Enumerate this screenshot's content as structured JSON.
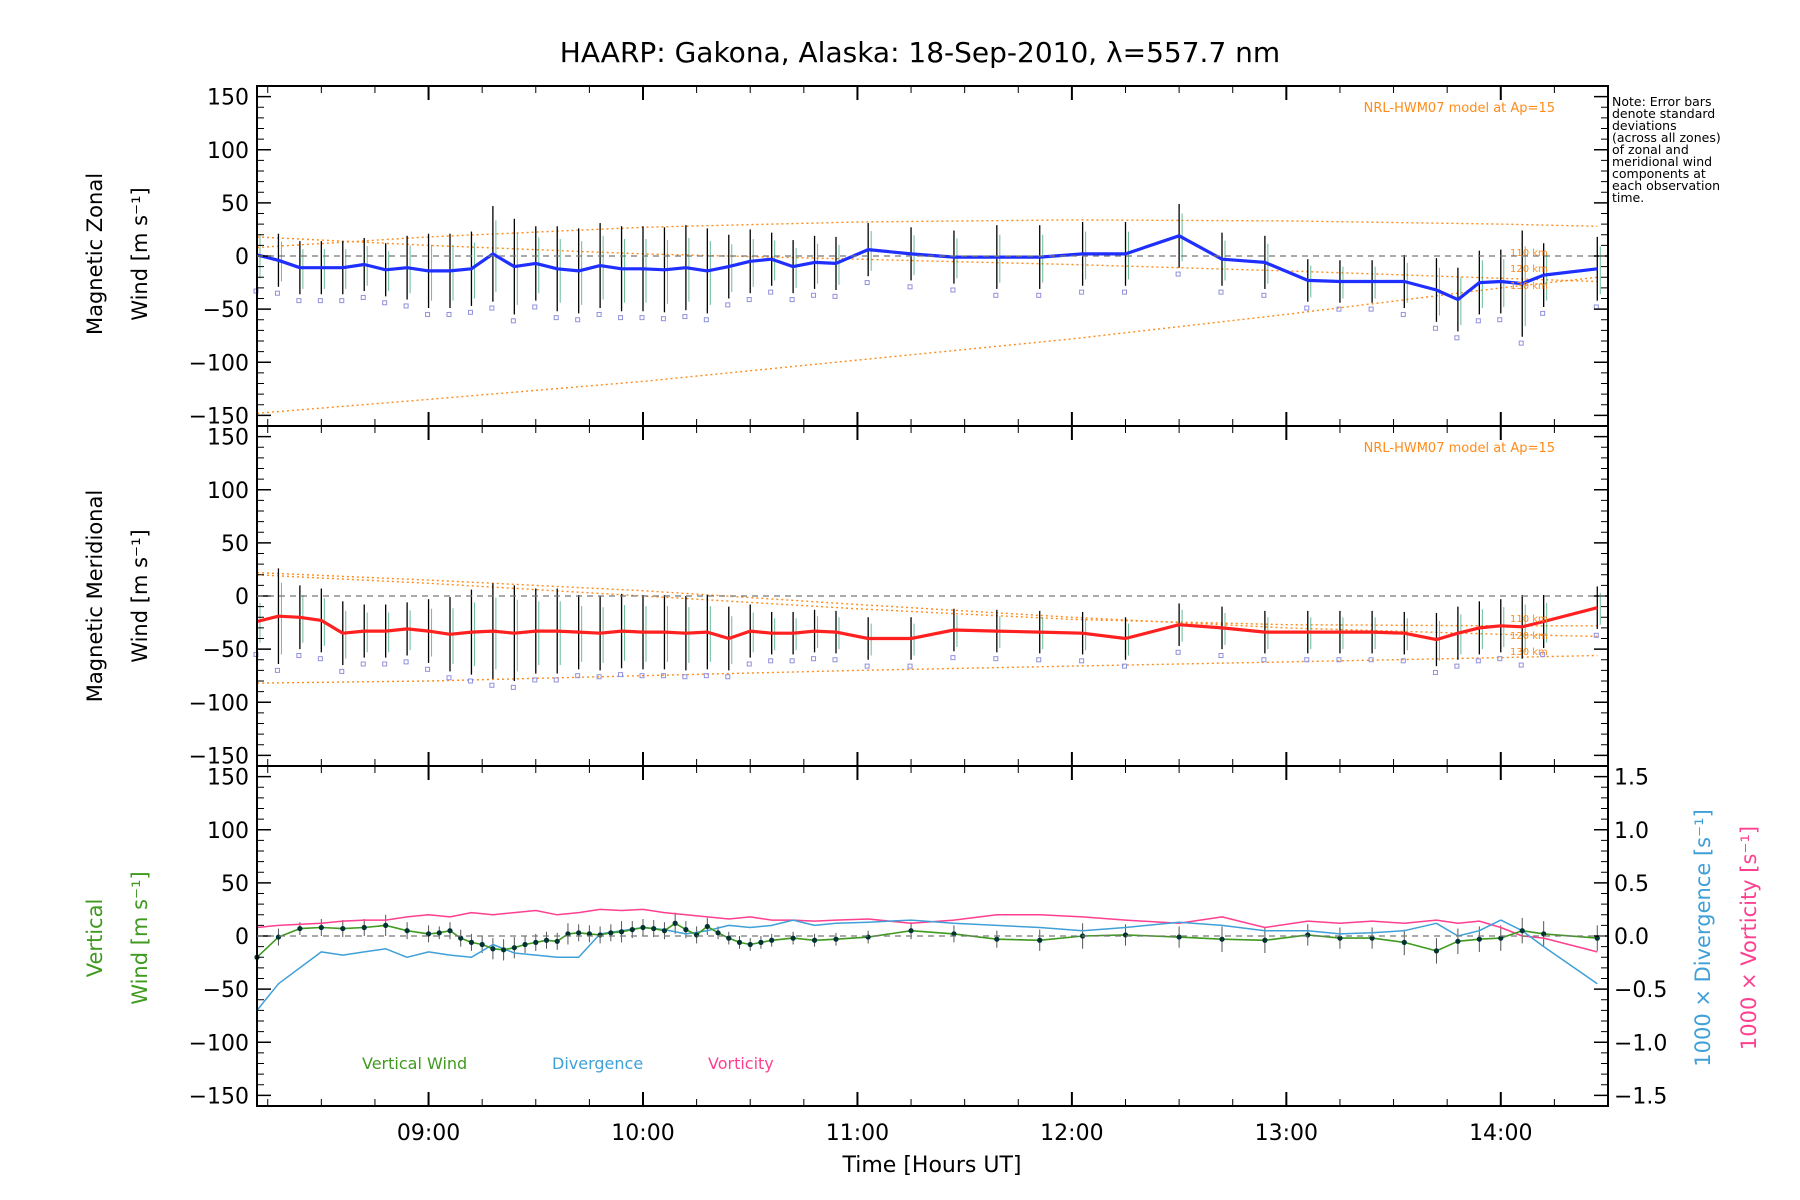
{
  "title": "HAARP: Gakona,  Alaska: 18-Sep-2010, λ=557.7 nm",
  "note": [
    "Note: Error bars",
    "denote standard",
    "deviations",
    "(across all zones)",
    "of zonal and",
    "meridional wind",
    "components at",
    "each observation",
    "time."
  ],
  "model_label": "NRL-HWM07 model at Ap=15",
  "altitude_labels": [
    "110 km",
    "120 km",
    "130 km"
  ],
  "xaxis": {
    "label": "Time [Hours UT]",
    "ticks": [
      "09:00",
      "10:00",
      "11:00",
      "12:00",
      "13:00",
      "14:00"
    ],
    "range_hours": [
      8.2,
      14.5
    ]
  },
  "colors": {
    "zonal": "#1f2fff",
    "meridional": "#ff2020",
    "vertical": "#3f9a1f",
    "divergence": "#3fa0d8",
    "vorticity": "#ff3f8f",
    "model": "#ff8c1a",
    "errorbar": "#000000",
    "points": "#003333"
  },
  "chart_data": [
    {
      "type": "line",
      "panel": "zonal",
      "ylabel": "Magnetic Zonal Wind [m s⁻¹]",
      "ylabel_lines": [
        "Magnetic Zonal",
        "Wind [m s⁻¹]"
      ],
      "ylim": [
        -160,
        160
      ],
      "yticks": [
        "150",
        "100",
        "50",
        "0",
        "−50",
        "−100",
        "−150"
      ],
      "x": [
        8.2,
        8.3,
        8.4,
        8.5,
        8.6,
        8.7,
        8.8,
        8.9,
        9.0,
        9.1,
        9.2,
        9.3,
        9.4,
        9.5,
        9.6,
        9.7,
        9.8,
        9.9,
        10.0,
        10.1,
        10.2,
        10.3,
        10.4,
        10.5,
        10.6,
        10.7,
        10.8,
        10.9,
        11.05,
        11.25,
        11.45,
        11.65,
        11.85,
        12.05,
        12.25,
        12.5,
        12.7,
        12.9,
        13.1,
        13.25,
        13.4,
        13.55,
        13.7,
        13.8,
        13.9,
        14.0,
        14.1,
        14.2,
        14.45
      ],
      "series": [
        {
          "values": [
            1,
            -4,
            -11,
            -11,
            -11,
            -8,
            -13,
            -11,
            -14,
            -14,
            -12,
            2,
            -10,
            -7,
            -12,
            -14,
            -9,
            -12,
            -12,
            -13,
            -11,
            -14,
            -10,
            -5,
            -3,
            -10,
            -6,
            -7,
            6,
            2,
            -1,
            -1,
            -1,
            2,
            2,
            19,
            -3,
            -6,
            -23,
            -24,
            -24,
            -24,
            -32,
            -41,
            -25,
            -24,
            -26,
            -18,
            -12
          ]
        }
      ],
      "error": [
        28,
        25,
        25,
        25,
        25,
        25,
        25,
        30,
        35,
        35,
        35,
        45,
        45,
        35,
        40,
        40,
        40,
        40,
        40,
        40,
        40,
        40,
        30,
        30,
        25,
        25,
        25,
        25,
        25,
        25,
        25,
        30,
        30,
        30,
        30,
        30,
        25,
        25,
        20,
        20,
        20,
        25,
        30,
        30,
        30,
        30,
        50,
        30,
        30
      ],
      "model": {
        "label": "NRL-HWM07 model at Ap=15",
        "curves": [
          {
            "name": "110 km",
            "x": [
              8.2,
              9,
              10,
              11,
              12,
              13,
              14,
              14.45
            ],
            "values": [
              8,
              18,
              27,
              32,
              34,
              33,
              30,
              28
            ]
          },
          {
            "name": "120 km",
            "x": [
              8.2,
              9,
              10,
              11,
              12,
              13,
              14,
              14.45
            ],
            "values": [
              18,
              10,
              2,
              -3,
              -8,
              -14,
              -21,
              -24
            ]
          },
          {
            "name": "130 km",
            "x": [
              8.2,
              9,
              10,
              11,
              12,
              13,
              14,
              14.45
            ],
            "values": [
              -148,
              -135,
              -118,
              -98,
              -78,
              -55,
              -30,
              -20
            ]
          }
        ]
      }
    },
    {
      "type": "line",
      "panel": "meridional",
      "ylabel": "Magnetic Meridional Wind [m s⁻¹]",
      "ylabel_lines": [
        "Magnetic Meridional",
        "Wind [m s⁻¹]"
      ],
      "ylim": [
        -160,
        160
      ],
      "yticks": [
        "150",
        "100",
        "50",
        "0",
        "−50",
        "−100",
        "−150"
      ],
      "x": [
        8.2,
        8.3,
        8.4,
        8.5,
        8.6,
        8.7,
        8.8,
        8.9,
        9.0,
        9.1,
        9.2,
        9.3,
        9.4,
        9.5,
        9.6,
        9.7,
        9.8,
        9.9,
        10.0,
        10.1,
        10.2,
        10.3,
        10.4,
        10.5,
        10.6,
        10.7,
        10.8,
        10.9,
        11.05,
        11.25,
        11.45,
        11.65,
        11.85,
        12.05,
        12.25,
        12.5,
        12.7,
        12.9,
        13.1,
        13.25,
        13.4,
        13.55,
        13.7,
        13.8,
        13.9,
        14.0,
        14.1,
        14.2,
        14.45
      ],
      "series": [
        {
          "values": [
            -24,
            -19,
            -20,
            -23,
            -35,
            -33,
            -33,
            -31,
            -33,
            -36,
            -34,
            -33,
            -35,
            -33,
            -33,
            -34,
            -35,
            -33,
            -34,
            -34,
            -35,
            -34,
            -40,
            -33,
            -35,
            -35,
            -33,
            -34,
            -40,
            -40,
            -32,
            -33,
            -34,
            -35,
            -40,
            -27,
            -30,
            -34,
            -34,
            -34,
            -34,
            -35,
            -41,
            -35,
            -30,
            -28,
            -29,
            -24,
            -11
          ]
        }
      ],
      "error": [
        25,
        45,
        30,
        30,
        30,
        25,
        25,
        25,
        30,
        35,
        40,
        45,
        45,
        40,
        40,
        35,
        35,
        35,
        35,
        35,
        35,
        35,
        30,
        25,
        20,
        20,
        20,
        20,
        20,
        20,
        20,
        20,
        20,
        20,
        20,
        20,
        20,
        20,
        20,
        20,
        20,
        20,
        25,
        25,
        25,
        25,
        30,
        25,
        20
      ],
      "model": {
        "label": "NRL-HWM07 model at Ap=15",
        "curves": [
          {
            "name": "120 km",
            "x": [
              8.2,
              9,
              10,
              11,
              12,
              13,
              14,
              14.45
            ],
            "values": [
              22,
              15,
              5,
              -8,
              -20,
              -30,
              -36,
              -38
            ]
          },
          {
            "name": "110 km",
            "x": [
              8.2,
              9,
              10,
              11,
              12,
              13,
              14,
              14.45
            ],
            "values": [
              20,
              12,
              0,
              -12,
              -22,
              -27,
              -28,
              -28
            ]
          },
          {
            "name": "130 km",
            "x": [
              8.2,
              9,
              10,
              11,
              12,
              13,
              14,
              14.45
            ],
            "values": [
              -82,
              -80,
              -75,
              -70,
              -66,
              -62,
              -58,
              -56
            ]
          }
        ]
      }
    },
    {
      "type": "line",
      "panel": "vertical",
      "ylabel": "Vertical Wind [m s⁻¹]",
      "ylabel_lines": [
        "Vertical",
        "Wind [m s⁻¹]"
      ],
      "ylim": [
        -160,
        160
      ],
      "yticks": [
        "150",
        "100",
        "50",
        "0",
        "−50",
        "−100",
        "−150"
      ],
      "y2label_div": "1000 × Divergence [s⁻¹]",
      "y2label_vor": "1000 × Vorticity [s⁻¹]",
      "y2lim": [
        -1.6,
        1.6
      ],
      "y2ticks": [
        "1.5",
        "1.0",
        "0.5",
        "0.0",
        "−0.5",
        "−1.0",
        "−1.5"
      ],
      "legend": [
        "Vertical Wind",
        "Divergence",
        "Vorticity"
      ],
      "series": [
        {
          "name": "Vertical Wind",
          "x": [
            8.2,
            8.3,
            8.4,
            8.5,
            8.6,
            8.7,
            8.8,
            8.9,
            9.0,
            9.05,
            9.1,
            9.15,
            9.2,
            9.25,
            9.3,
            9.35,
            9.4,
            9.45,
            9.5,
            9.55,
            9.6,
            9.65,
            9.7,
            9.75,
            9.8,
            9.85,
            9.9,
            9.95,
            10.0,
            10.05,
            10.1,
            10.15,
            10.2,
            10.25,
            10.3,
            10.35,
            10.4,
            10.45,
            10.5,
            10.55,
            10.6,
            10.7,
            10.8,
            10.9,
            11.05,
            11.25,
            11.45,
            11.65,
            11.85,
            12.05,
            12.25,
            12.5,
            12.7,
            12.9,
            13.1,
            13.25,
            13.4,
            13.55,
            13.7,
            13.8,
            13.9,
            14.0,
            14.1,
            14.2,
            14.45
          ],
          "values": [
            -20,
            -1,
            7,
            8,
            7,
            8,
            10,
            5,
            2,
            3,
            5,
            -2,
            -6,
            -8,
            -12,
            -13,
            -11,
            -8,
            -6,
            -4,
            -5,
            2,
            3,
            2,
            1,
            3,
            4,
            6,
            8,
            7,
            5,
            12,
            6,
            1,
            9,
            3,
            -2,
            -6,
            -8,
            -6,
            -4,
            -2,
            -4,
            -3,
            -1,
            5,
            2,
            -3,
            -4,
            0,
            1,
            -1,
            -3,
            -4,
            1,
            -2,
            -2,
            -6,
            -14,
            -5,
            -3,
            -2,
            5,
            2,
            -2
          ]
        },
        {
          "name": "Divergence",
          "x": [
            8.2,
            8.3,
            8.5,
            8.6,
            8.7,
            8.8,
            8.9,
            9.0,
            9.1,
            9.2,
            9.3,
            9.4,
            9.5,
            9.6,
            9.7,
            9.8,
            9.9,
            10.0,
            10.1,
            10.2,
            10.3,
            10.4,
            10.5,
            10.6,
            10.7,
            10.8,
            10.9,
            11.05,
            11.25,
            11.45,
            11.65,
            11.85,
            12.05,
            12.25,
            12.5,
            12.7,
            12.9,
            13.1,
            13.25,
            13.4,
            13.55,
            13.7,
            13.8,
            13.9,
            14.0,
            14.1,
            14.2,
            14.45
          ],
          "values": [
            -0.7,
            -0.45,
            -0.15,
            -0.18,
            -0.15,
            -0.12,
            -0.2,
            -0.15,
            -0.18,
            -0.2,
            -0.08,
            -0.16,
            -0.18,
            -0.2,
            -0.2,
            0.02,
            0.05,
            0.08,
            0.06,
            0.02,
            0.05,
            0.1,
            0.08,
            0.1,
            0.15,
            0.1,
            0.12,
            0.13,
            0.15,
            0.12,
            0.1,
            0.08,
            0.05,
            0.08,
            0.13,
            0.1,
            0.05,
            0.05,
            0.02,
            0.03,
            0.05,
            0.12,
            0.0,
            0.05,
            0.15,
            0.05,
            -0.1,
            -0.45
          ]
        },
        {
          "name": "Vorticity",
          "x": [
            8.2,
            8.3,
            8.5,
            8.6,
            8.7,
            8.8,
            8.9,
            9.0,
            9.1,
            9.2,
            9.3,
            9.4,
            9.5,
            9.6,
            9.7,
            9.8,
            9.9,
            10.0,
            10.1,
            10.2,
            10.3,
            10.4,
            10.5,
            10.6,
            10.7,
            10.8,
            10.9,
            11.05,
            11.25,
            11.45,
            11.65,
            11.85,
            12.05,
            12.25,
            12.5,
            12.7,
            12.9,
            13.1,
            13.25,
            13.4,
            13.55,
            13.7,
            13.8,
            13.9,
            14.0,
            14.1,
            14.2,
            14.45
          ],
          "values": [
            0.08,
            0.1,
            0.12,
            0.14,
            0.15,
            0.15,
            0.18,
            0.2,
            0.18,
            0.22,
            0.2,
            0.22,
            0.24,
            0.2,
            0.22,
            0.25,
            0.24,
            0.25,
            0.22,
            0.2,
            0.18,
            0.16,
            0.18,
            0.15,
            0.15,
            0.14,
            0.15,
            0.16,
            0.12,
            0.15,
            0.2,
            0.2,
            0.18,
            0.15,
            0.12,
            0.18,
            0.08,
            0.14,
            0.12,
            0.14,
            0.12,
            0.15,
            0.12,
            0.14,
            0.08,
            0.0,
            -0.02,
            -0.15
          ]
        }
      ],
      "error": [
        5,
        8,
        6,
        8,
        8,
        8,
        10,
        8,
        8,
        6,
        8,
        8,
        8,
        8,
        10,
        10,
        10,
        8,
        8,
        8,
        8,
        10,
        8,
        8,
        8,
        8,
        10,
        8,
        8,
        8,
        8,
        10,
        8,
        8,
        8,
        6,
        6,
        6,
        6,
        6,
        6,
        6,
        6,
        6,
        6,
        8,
        8,
        8,
        10,
        12,
        10,
        10,
        12,
        12,
        10,
        10,
        10,
        12,
        12,
        12,
        12,
        12,
        12,
        12,
        12
      ]
    }
  ]
}
